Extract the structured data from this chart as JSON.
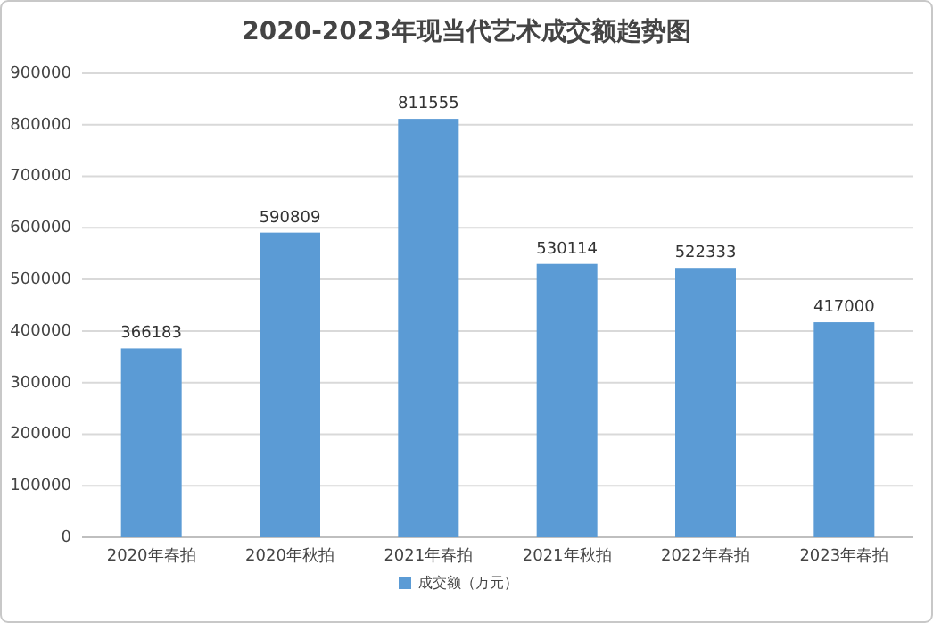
{
  "chart_data": {
    "type": "bar",
    "title": "2020-2023年现当代艺术成交额趋势图",
    "categories": [
      "2020年春拍",
      "2020年秋拍",
      "2021年春拍",
      "2021年秋拍",
      "2022年春拍",
      "2023年春拍"
    ],
    "series": [
      {
        "name": "成交额（万元）",
        "color": "#5b9bd5",
        "values": [
          366183,
          590809,
          811555,
          530114,
          522333,
          417000
        ]
      }
    ],
    "ylim": [
      0,
      900000
    ],
    "yticks": [
      0,
      100000,
      200000,
      300000,
      400000,
      500000,
      600000,
      700000,
      800000,
      900000
    ],
    "grid": "y",
    "legend": "bottom",
    "data_labels": true
  }
}
